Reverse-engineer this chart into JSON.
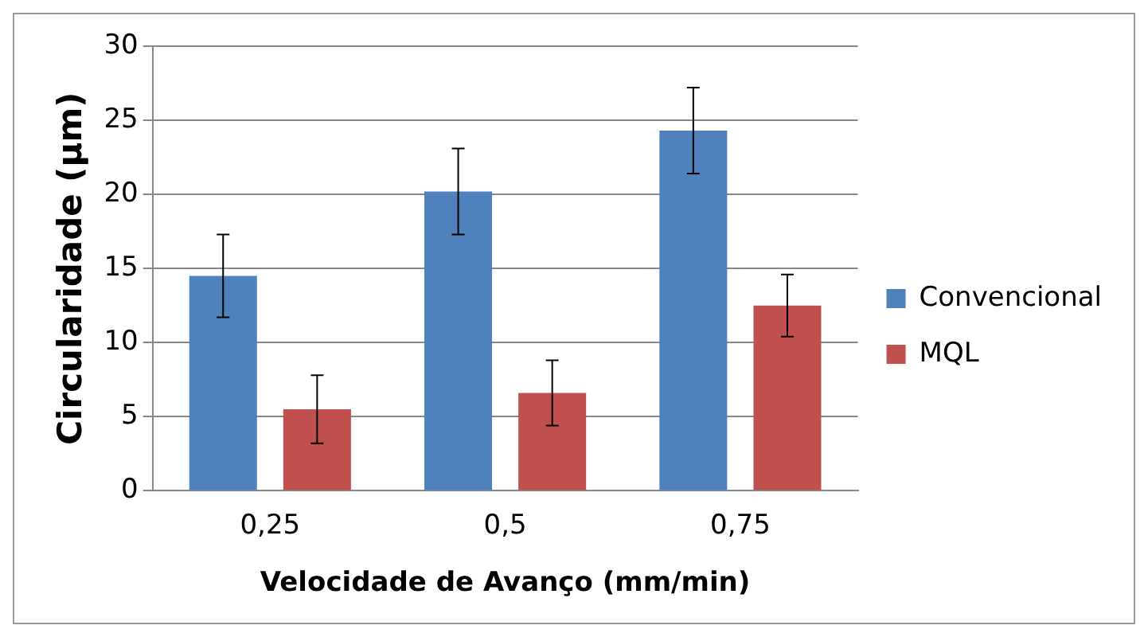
{
  "chart_data": {
    "type": "bar",
    "xlabel": "Velocidade de Avanço (mm/min)",
    "ylabel": "Circularidade (µm)",
    "categories": [
      "0,25",
      "0,5",
      "0,75"
    ],
    "series": [
      {
        "name": "Convencional",
        "color": "#4f81bd",
        "values": [
          14.5,
          20.2,
          24.3
        ],
        "errors": [
          2.8,
          2.9,
          2.9
        ]
      },
      {
        "name": "MQL",
        "color": "#c0504d",
        "values": [
          5.5,
          6.6,
          12.5
        ],
        "errors": [
          2.3,
          2.2,
          2.1
        ]
      }
    ],
    "ylim": [
      0,
      30
    ],
    "yticks": [
      0,
      5,
      10,
      15,
      20,
      25,
      30
    ],
    "grid": "y",
    "legend": "right"
  }
}
